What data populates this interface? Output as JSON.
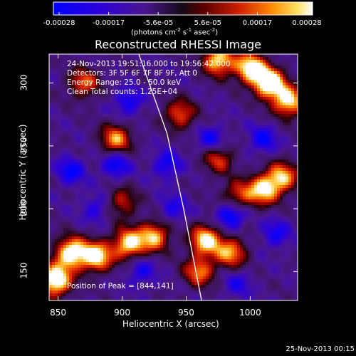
{
  "chart_data": {
    "type": "heatmap",
    "title": "Reconstructed RHESSI Image",
    "xlabel": "Heliocentric X (arcsec)",
    "ylabel": "Heliocentric Y (arcsec)",
    "xlim": [
      843,
      1037
    ],
    "ylim": [
      127,
      323
    ],
    "x_ticks": [
      850,
      900,
      950,
      1000
    ],
    "y_ticks": [
      150,
      200,
      250,
      300
    ],
    "colorbar": {
      "ticks": [
        "-0.00028",
        "-0.00017",
        "-5.6e-05",
        "5.6e-05",
        "0.00017",
        "0.00028"
      ],
      "range": [
        -0.00028,
        0.00028
      ],
      "unit_text": "(photons cm",
      "unit_sup1": "-2",
      "unit_mid": " s",
      "unit_sup2": "-1",
      "unit_mid2": " asec",
      "unit_sup3": "-2",
      "unit_end": ")"
    },
    "info_lines": [
      "24-Nov-2013 19:51:16.000 to 19:56:42.000",
      "Detectors: 3F 5F 6F 7F 8F 9F, Att 0",
      "Energy Range: 25.0 - 50.0 keV",
      "Clean     Total counts: 1.25E+04"
    ],
    "peak_label": "Position of Peak = [844,141]",
    "limb_curve": [
      [
        913,
        323
      ],
      [
        935,
        260
      ],
      [
        948,
        200
      ],
      [
        962,
        127
      ]
    ],
    "hot_regions": [
      {
        "x": 860,
        "y": 165,
        "intensity": 0.9
      },
      {
        "x": 880,
        "y": 162,
        "intensity": 0.85
      },
      {
        "x": 905,
        "y": 172,
        "intensity": 0.8
      },
      {
        "x": 925,
        "y": 178,
        "intensity": 0.7
      },
      {
        "x": 848,
        "y": 143,
        "intensity": 1.0
      },
      {
        "x": 1015,
        "y": 300,
        "intensity": 1.0
      },
      {
        "x": 1000,
        "y": 312,
        "intensity": 0.85
      },
      {
        "x": 975,
        "y": 318,
        "intensity": 0.8
      },
      {
        "x": 1030,
        "y": 285,
        "intensity": 0.8
      },
      {
        "x": 1010,
        "y": 215,
        "intensity": 0.75
      },
      {
        "x": 1025,
        "y": 225,
        "intensity": 0.7
      },
      {
        "x": 965,
        "y": 175,
        "intensity": 0.8
      },
      {
        "x": 985,
        "y": 165,
        "intensity": 0.65
      },
      {
        "x": 960,
        "y": 150,
        "intensity": 0.6
      },
      {
        "x": 895,
        "y": 255,
        "intensity": 0.65
      },
      {
        "x": 870,
        "y": 300,
        "intensity": 0.55
      },
      {
        "x": 945,
        "y": 275,
        "intensity": 0.55
      },
      {
        "x": 975,
        "y": 240,
        "intensity": 0.5
      },
      {
        "x": 900,
        "y": 205,
        "intensity": 0.45
      },
      {
        "x": 990,
        "y": 210,
        "intensity": 0.5
      }
    ],
    "cold_regions": [
      {
        "x": 985,
        "y": 195,
        "intensity": 1.0
      },
      {
        "x": 895,
        "y": 235,
        "intensity": 0.8
      },
      {
        "x": 860,
        "y": 230,
        "intensity": 0.75
      },
      {
        "x": 935,
        "y": 235,
        "intensity": 0.7
      },
      {
        "x": 905,
        "y": 285,
        "intensity": 0.7
      },
      {
        "x": 970,
        "y": 255,
        "intensity": 0.7
      },
      {
        "x": 1010,
        "y": 255,
        "intensity": 0.7
      },
      {
        "x": 940,
        "y": 200,
        "intensity": 0.55
      },
      {
        "x": 1020,
        "y": 180,
        "intensity": 0.65
      },
      {
        "x": 880,
        "y": 200,
        "intensity": 0.55
      },
      {
        "x": 915,
        "y": 150,
        "intensity": 0.6
      },
      {
        "x": 990,
        "y": 140,
        "intensity": 0.5
      }
    ]
  },
  "footer_date": "25-Nov-2013 00:15"
}
